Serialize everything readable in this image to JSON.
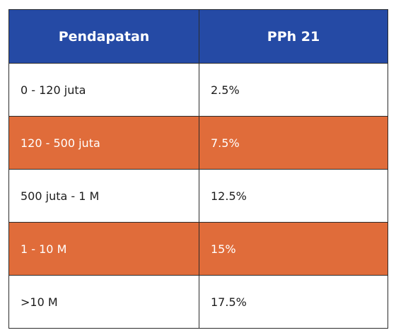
{
  "table": {
    "headers": [
      "Pendapatan",
      "PPh 21"
    ],
    "colors": {
      "header_bg": "#254aa5",
      "highlight_bg": "#e06c3a",
      "border": "#2b2b2b"
    },
    "rows": [
      {
        "income": "0 - 120 juta",
        "rate": "2.5%",
        "highlight": false
      },
      {
        "income": "120 - 500 juta",
        "rate": "7.5%",
        "highlight": true
      },
      {
        "income": "500 juta - 1 M",
        "rate": "12.5%",
        "highlight": false
      },
      {
        "income": "1 - 10 M",
        "rate": "15%",
        "highlight": true
      },
      {
        "income": ">10 M",
        "rate": "17.5%",
        "highlight": false
      }
    ]
  }
}
